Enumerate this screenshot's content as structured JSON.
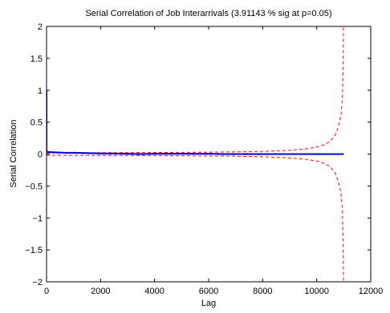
{
  "chart_data": {
    "type": "line",
    "title": "Serial Correlation of Job Interarrivals (3.91143 % sig at p=0.05)",
    "xlabel": "Lag",
    "ylabel": "Serial Correlation",
    "xlim": [
      0,
      12000
    ],
    "ylim": [
      -2,
      2
    ],
    "x_ticks": [
      0,
      2000,
      4000,
      6000,
      8000,
      10000,
      12000
    ],
    "y_ticks": [
      -2,
      -1.5,
      -1,
      -0.5,
      0,
      0.5,
      1,
      1.5,
      2
    ],
    "x_tick_labels": [
      "0",
      "2000",
      "4000",
      "6000",
      "8000",
      "10000",
      "12000"
    ],
    "y_tick_labels": [
      "−2",
      "−1.5",
      "−1",
      "−0.5",
      "0",
      "0.5",
      "1",
      "1.5",
      "2"
    ],
    "grid": false,
    "legend": "none",
    "series": [
      {
        "role": "serial-correlation",
        "color": "#0000ff",
        "style": "solid",
        "x": [
          0,
          1,
          20,
          50,
          100,
          200,
          400,
          700,
          1000,
          1500,
          2000,
          2500,
          3000,
          3500,
          4000,
          4500,
          5000,
          5500,
          6000,
          6500,
          7000,
          7500,
          8000,
          8500,
          9000,
          9500,
          10000,
          10500,
          11000
        ],
        "y": [
          1.0,
          0.05,
          0.04,
          0.035,
          0.03,
          0.03,
          0.025,
          0.02,
          0.02,
          0.015,
          0.01,
          0.01,
          0.005,
          0.0,
          0.005,
          0.005,
          0.005,
          0.005,
          0.005,
          0.0,
          0.0,
          0.0,
          0.0,
          0.0,
          0.0,
          0.0,
          0.0,
          0.0,
          0.0
        ]
      },
      {
        "role": "upper-significance-bound",
        "color": "#ff0000",
        "style": "dashed",
        "x": [
          0,
          1000,
          2000,
          3000,
          4000,
          5000,
          6000,
          7000,
          8000,
          9000,
          9500,
          10000,
          10300,
          10500,
          10700,
          10800,
          10900,
          10950,
          10980,
          10990,
          10995,
          10998
        ],
        "y": [
          0.0187,
          0.0197,
          0.0209,
          0.0224,
          0.0242,
          0.0265,
          0.0296,
          0.0342,
          0.0419,
          0.0592,
          0.0765,
          0.1084,
          0.15,
          0.1977,
          0.3063,
          0.4336,
          0.6132,
          0.8672,
          1.3712,
          1.9392,
          2.0,
          2.0
        ]
      },
      {
        "role": "lower-significance-bound",
        "color": "#ff0000",
        "style": "dashed",
        "x": [
          0,
          1000,
          2000,
          3000,
          4000,
          5000,
          6000,
          7000,
          8000,
          9000,
          9500,
          10000,
          10300,
          10500,
          10700,
          10800,
          10900,
          10950,
          10980,
          10990,
          10995,
          10998
        ],
        "y": [
          -0.0187,
          -0.0197,
          -0.0209,
          -0.0224,
          -0.0242,
          -0.0265,
          -0.0296,
          -0.0342,
          -0.0419,
          -0.0592,
          -0.0765,
          -0.1084,
          -0.15,
          -0.1977,
          -0.3063,
          -0.4336,
          -0.6132,
          -0.8672,
          -1.3712,
          -1.9392,
          -2.0,
          -2.0
        ]
      }
    ]
  }
}
